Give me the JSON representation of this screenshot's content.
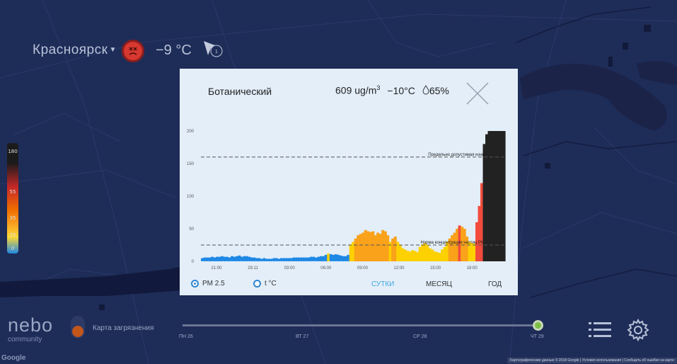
{
  "header": {
    "city": "Красноярск",
    "temperature": "−9 °C",
    "wind_label": "1"
  },
  "scale": {
    "labels": [
      "180",
      "55",
      "35",
      "25",
      "0"
    ]
  },
  "popup": {
    "station": "Ботанический",
    "pm_value": "609 ug/m",
    "pm_unit_sup": "3",
    "temperature": "−10°C",
    "humidity": "65%",
    "radio_pm": "PM 2.5",
    "radio_temp": "t °C",
    "period_day": "СУТКИ",
    "period_month": "МЕСЯЦ",
    "period_year": "ГОД"
  },
  "chart_data": {
    "type": "bar",
    "ylim": [
      0,
      200
    ],
    "yticks": [
      0,
      50,
      100,
      150,
      200
    ],
    "xticks": [
      "21:00",
      "29.11",
      "03:00",
      "06:00",
      "09:00",
      "12:00",
      "15:00",
      "18:00"
    ],
    "reference_lines": [
      {
        "label": "Предельно допустимая концентрация",
        "value": 160
      },
      {
        "label": "Норма концентрации частиц PM2.5 (ВОЗ)",
        "value": 25
      }
    ],
    "values": [
      5,
      6,
      6,
      6,
      7,
      6,
      7,
      7,
      8,
      7,
      7,
      6,
      8,
      7,
      8,
      9,
      7,
      8,
      8,
      7,
      6,
      6,
      5,
      5,
      4,
      5,
      4,
      4,
      4,
      5,
      5,
      4,
      5,
      5,
      5,
      5,
      5,
      6,
      6,
      6,
      6,
      6,
      6,
      6,
      7,
      7,
      6,
      7,
      8,
      8,
      10,
      12,
      11,
      10,
      11,
      10,
      9,
      8,
      8,
      10,
      26,
      30,
      35,
      40,
      42,
      44,
      48,
      46,
      45,
      46,
      40,
      44,
      42,
      48,
      46,
      40,
      30,
      35,
      38,
      30,
      25,
      20,
      18,
      16,
      15,
      17,
      16,
      14,
      22,
      26,
      28,
      25,
      20,
      18,
      15,
      14,
      13,
      18,
      22,
      30,
      35,
      40,
      44,
      50,
      55,
      53,
      50,
      38,
      30,
      28,
      27,
      60,
      85,
      120,
      180,
      195,
      200,
      200,
      200,
      200,
      200,
      200,
      200
    ],
    "colors": {
      "blue": "#1e88e5",
      "yellow": "#fdd000",
      "orange": "#f9a21a",
      "red": "#f24b3c",
      "black": "#222222"
    }
  },
  "timeline": {
    "days": [
      "ПН 26",
      "ВТ 27",
      "СР 28",
      "ЧТ 29"
    ],
    "layer_label": "Карта загрязнения"
  },
  "brand": {
    "logo": "nebo",
    "sub": "community",
    "google": "Google",
    "attribution": "Картографические данные © 2018 Google | Условия использования | Сообщить об ошибке на карте"
  }
}
